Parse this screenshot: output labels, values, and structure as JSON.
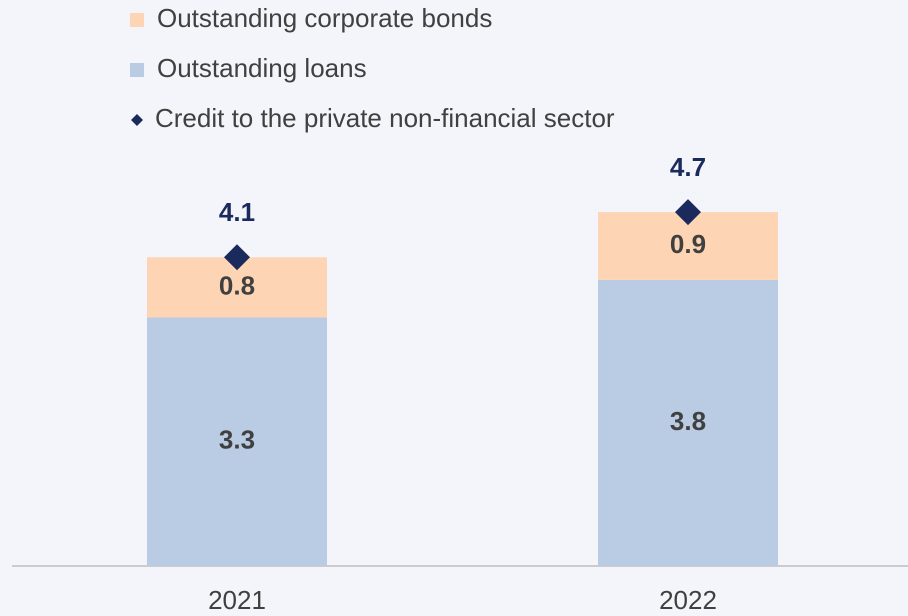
{
  "chart_data": {
    "type": "bar",
    "stacked": true,
    "categories": [
      "2021",
      "2022"
    ],
    "series": [
      {
        "name": "Outstanding corporate bonds",
        "color": "#fdd5b4",
        "values": [
          0.8,
          0.9
        ]
      },
      {
        "name": "Outstanding loans",
        "color": "#b9cce4",
        "values": [
          3.3,
          3.8
        ]
      },
      {
        "name": "Credit to the private non-financial sector",
        "color": "#1b2a5c",
        "type": "scatter",
        "marker": "diamond",
        "values": [
          4.1,
          4.7
        ]
      }
    ],
    "legend": "top-left"
  }
}
